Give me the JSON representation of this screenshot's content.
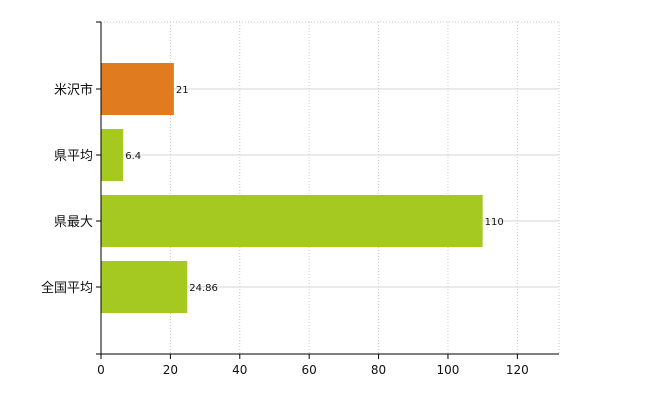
{
  "chart_data": {
    "type": "bar",
    "orientation": "horizontal",
    "categories": [
      "米沢市",
      "県平均",
      "県最大",
      "全国平均"
    ],
    "values": [
      21,
      6.4,
      110,
      24.86
    ],
    "data_labels": [
      "21",
      "6.4",
      "110",
      "24.86"
    ],
    "bar_colors": [
      "#e07b20",
      "#a6c922",
      "#a6c922",
      "#a6c922"
    ],
    "title": "",
    "xlabel": "",
    "ylabel": "",
    "xlim": [
      0,
      132
    ],
    "x_ticks": [
      0,
      20,
      40,
      60,
      80,
      100,
      120
    ],
    "x_tick_labels": [
      "0",
      "20",
      "40",
      "60",
      "80",
      "100",
      "120"
    ],
    "grid": true,
    "grid_style": "dotted-vertical",
    "legend": "none"
  }
}
